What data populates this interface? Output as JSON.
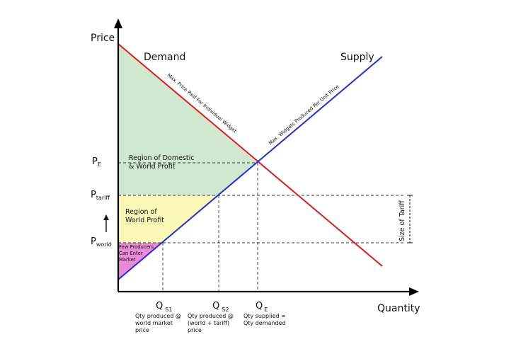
{
  "axes": {
    "y_label": "Price",
    "x_label": "Quantity"
  },
  "curves": {
    "demand_label": "Demand",
    "supply_label": "Supply",
    "demand_note": "Max. Price Paid For Individual Widget",
    "supply_note": "Max. Widgets Produced Per Unit Price",
    "demand_color": "#e41b1b",
    "supply_color": "#1f2ee6"
  },
  "price_levels": {
    "pe": {
      "main": "P",
      "sub": "E"
    },
    "ptariff": {
      "main": "P",
      "sub": "tariff"
    },
    "pworld": {
      "main": "P",
      "sub": "world"
    }
  },
  "quantity_levels": {
    "qs1": {
      "main": "Q",
      "sub": "S1",
      "note": [
        "Qty produced @",
        "world market",
        "price"
      ]
    },
    "qs2": {
      "main": "Q",
      "sub": "S2",
      "note": [
        "Qty produced @",
        "(world + tariff)",
        "price"
      ]
    },
    "qe": {
      "main": "Q",
      "sub": "E",
      "note": [
        "Qty supplied =",
        "Qty demanded"
      ]
    }
  },
  "regions": {
    "domestic_world_profit": {
      "lines": [
        "Region of Domestic",
        "& World Profit"
      ],
      "color": "#cfe8cf"
    },
    "world_profit": {
      "lines": [
        "Region of",
        "World Profit"
      ],
      "color": "#fbf7b7"
    },
    "few_producers": {
      "lines": [
        "Few Producers",
        "Can Enter",
        "Market"
      ],
      "color": "#e98bd8"
    }
  },
  "tariff": {
    "label": "Size of Tariff"
  },
  "icons": {
    "y_arrow": "arrow-up-icon",
    "x_arrow": "arrow-right-icon",
    "tariff_arrow": "arrow-up-icon"
  }
}
